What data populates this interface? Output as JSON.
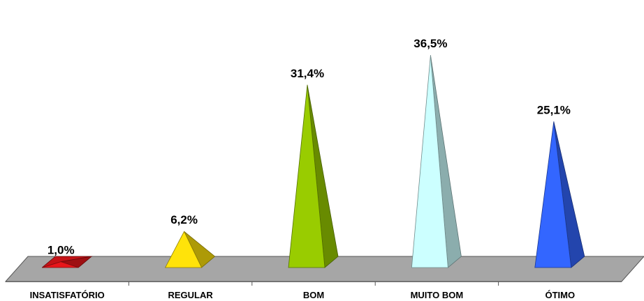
{
  "chart_data": {
    "type": "bar",
    "categories": [
      "INSATISFATÓRIO",
      "REGULAR",
      "BOM",
      "MUITO BOM",
      "ÓTIMO"
    ],
    "values": [
      1.0,
      6.2,
      31.4,
      36.5,
      25.1
    ],
    "data_labels": [
      "1,0%",
      "6,2%",
      "31,4%",
      "36,5%",
      "25,1%"
    ],
    "colors": [
      "#e8161b",
      "#ffe30a",
      "#99cc00",
      "#ccffff",
      "#3366ff"
    ],
    "ylim": [
      0,
      40
    ],
    "grid": false,
    "legend": "none",
    "style": "3d-pyramid"
  }
}
